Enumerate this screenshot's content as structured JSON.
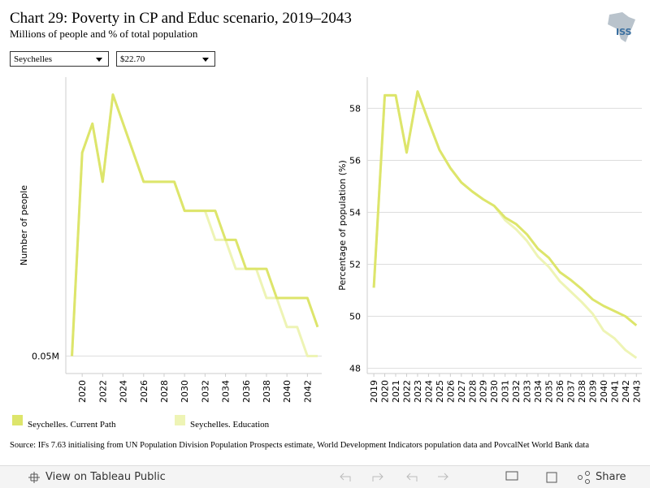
{
  "header": {
    "title": "Chart 29: Poverty in CP and Educ scenario, 2019–2043",
    "subtitle": "Millions of people and % of total population",
    "logo": "ISS"
  },
  "filters": [
    "Seychelles",
    "$22.70"
  ],
  "chart_data": [
    {
      "type": "line",
      "y_label": "Number of people",
      "x": [
        2019,
        2020,
        2021,
        2022,
        2023,
        2024,
        2025,
        2026,
        2027,
        2028,
        2029,
        2030,
        2031,
        2032,
        2033,
        2034,
        2035,
        2036,
        2037,
        2038,
        2039,
        2040,
        2041,
        2042,
        2043
      ],
      "xlim": [
        2018.4,
        2043.4
      ],
      "xticks": [
        2020,
        2022,
        2024,
        2026,
        2028,
        2030,
        2032,
        2034,
        2036,
        2038,
        2040,
        2042
      ],
      "ylim": [
        0.0494,
        0.0596
      ],
      "yticks": [
        {
          "value": 0.05,
          "label": "0.05M"
        }
      ],
      "grid": true,
      "series": [
        {
          "name": "Seychelles. Current Path",
          "color": "#dde56b",
          "values": [
            0.05,
            0.057,
            0.058,
            0.056,
            0.059,
            0.058,
            0.057,
            0.056,
            0.056,
            0.056,
            0.056,
            0.055,
            0.055,
            0.055,
            0.055,
            0.054,
            0.054,
            0.053,
            0.053,
            0.053,
            0.052,
            0.052,
            0.052,
            0.052,
            0.051
          ]
        },
        {
          "name": "Seychelles. Education",
          "color": "#eef4b5",
          "values": [
            0.05,
            0.057,
            0.058,
            0.056,
            0.059,
            0.058,
            0.057,
            0.056,
            0.056,
            0.056,
            0.056,
            0.055,
            0.055,
            0.055,
            0.054,
            0.054,
            0.053,
            0.053,
            0.053,
            0.052,
            0.052,
            0.051,
            0.051,
            0.05,
            0.05
          ]
        }
      ]
    },
    {
      "type": "line",
      "y_label": "Percentage of population (%)",
      "x": [
        2019,
        2020,
        2021,
        2022,
        2023,
        2024,
        2025,
        2026,
        2027,
        2028,
        2029,
        2030,
        2031,
        2032,
        2033,
        2034,
        2035,
        2036,
        2037,
        2038,
        2039,
        2040,
        2041,
        2042,
        2043
      ],
      "xlim": [
        2018.4,
        2043.5
      ],
      "xticks": [
        2019,
        2020,
        2021,
        2022,
        2023,
        2024,
        2025,
        2026,
        2027,
        2028,
        2029,
        2030,
        2031,
        2032,
        2033,
        2034,
        2035,
        2036,
        2037,
        2038,
        2039,
        2040,
        2041,
        2042,
        2043
      ],
      "ylim": [
        47.8,
        59.2
      ],
      "yticks": [
        48,
        50,
        52,
        54,
        56,
        58
      ],
      "grid": true,
      "series": [
        {
          "color": "#dde56b",
          "values": [
            51.1,
            58.5,
            58.5,
            56.3,
            58.65,
            57.5,
            56.4,
            55.7,
            55.15,
            54.8,
            54.5,
            54.25,
            53.8,
            53.55,
            53.15,
            52.6,
            52.25,
            51.7,
            51.4,
            51.05,
            50.65,
            50.4,
            50.2,
            50.0,
            49.65
          ]
        },
        {
          "color": "#eef4b5",
          "values": [
            51.1,
            58.5,
            58.5,
            56.3,
            58.65,
            57.5,
            56.4,
            55.7,
            55.15,
            54.8,
            54.5,
            54.25,
            53.7,
            53.35,
            52.9,
            52.3,
            51.9,
            51.35,
            50.95,
            50.55,
            50.1,
            49.45,
            49.15,
            48.7,
            48.4
          ]
        }
      ]
    }
  ],
  "source": "Source: IFs 7.63 initialising from UN Population Division Population Prospects estimate, World Development Indicators population data and PovcalNet World Bank data",
  "toolbar": {
    "view": "View on Tableau Public",
    "share": "Share"
  }
}
